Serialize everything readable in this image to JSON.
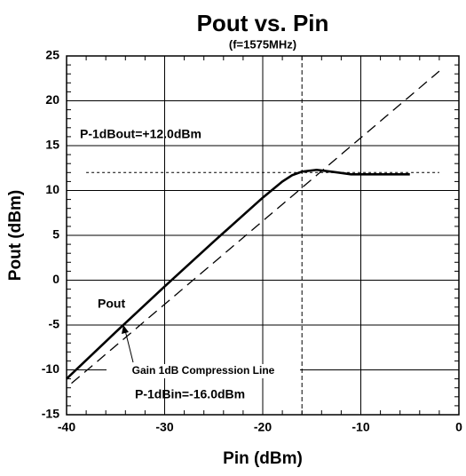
{
  "chart_data": {
    "type": "line",
    "title": "Pout vs. Pin",
    "subtitle": "(f=1575MHz)",
    "x_label": "Pin (dBm)",
    "y_label": "Pout (dBm)",
    "xlim": [
      -40,
      0
    ],
    "ylim": [
      -15,
      25
    ],
    "xticks": [
      -40,
      -30,
      -20,
      -10,
      0
    ],
    "yticks": [
      -15,
      -10,
      -5,
      0,
      5,
      10,
      15,
      20,
      25
    ],
    "grid": true,
    "series": [
      {
        "name": "Pout",
        "color": "#000000",
        "style": "solid",
        "x": [
          -40,
          -35,
          -30,
          -25,
          -20,
          -18,
          -17,
          -16,
          -14.5,
          -13,
          -11,
          -8,
          -5
        ],
        "values": [
          -11,
          -5.8,
          -0.7,
          4.3,
          9.2,
          11,
          11.7,
          12.1,
          12.3,
          12.1,
          11.8,
          11.8,
          11.8
        ]
      },
      {
        "name": "Gain 1dB Compression Line",
        "color": "#000000",
        "style": "dashed",
        "x": [
          -39.5,
          -2
        ],
        "values": [
          -11.5,
          23.3
        ]
      }
    ],
    "reference_lines": {
      "y": 12,
      "x": -16
    },
    "annotations": [
      "P-1dBout=+12.0dBm",
      "P-1dBin=-16.0dBm"
    ]
  }
}
